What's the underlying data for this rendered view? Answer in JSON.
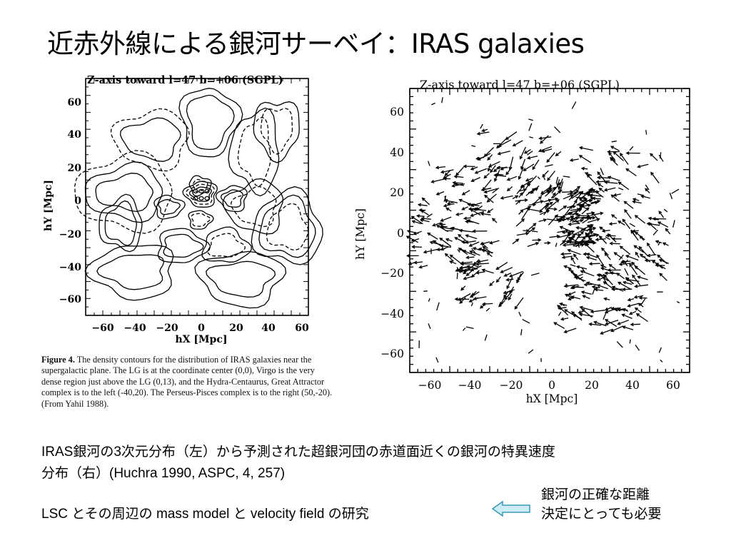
{
  "slide": {
    "title": "近赤外線による銀河サーベイ：IRAS galaxies",
    "caption_line1": "IRAS銀河の3次元分布（左）から予測された超銀河団の赤道面近くの銀河の特異速度",
    "caption_line2": "分布（右）(Huchra 1990, ASPC, 4, 257)",
    "bottom_text": "LSC とその周辺の mass model と velocity field の研究",
    "note_line1": "銀河の正確な距離",
    "note_line2": "決定にとっても必要"
  },
  "left_figure": {
    "title": "Z-axis toward l=47 b=+06      (SGPL)",
    "xlabel": "hX [Mpc]",
    "ylabel": "hY [Mpc]",
    "x_ticks": [
      "−60",
      "−40",
      "−20",
      "0",
      "20",
      "40",
      "60"
    ],
    "y_ticks": [
      "60",
      "40",
      "20",
      "0",
      "−20",
      "−40",
      "−60"
    ],
    "caption_label": "Figure 4.",
    "caption_text": "The density contours for the distribution of IRAS galaxies near the supergalactic plane. The LG is at the coordinate center (0,0), Virgo is the very dense region just above the LG (0,13), and the Hydra-Centaurus, Great Attractor complex is to the left (-40,20). The Perseus-Pisces complex is to the right (50,-20). (From Yahil 1988)."
  },
  "right_figure": {
    "title": "Z-axis toward l=47 b=+06      (SGPL)",
    "xlabel": "hX [Mpc]",
    "ylabel": "hY [Mpc]",
    "x_ticks": [
      "−60",
      "−40",
      "−20",
      "0",
      "20",
      "40",
      "60"
    ],
    "y_ticks": [
      "60",
      "40",
      "20",
      "0",
      "−20",
      "−40",
      "−60"
    ]
  }
}
